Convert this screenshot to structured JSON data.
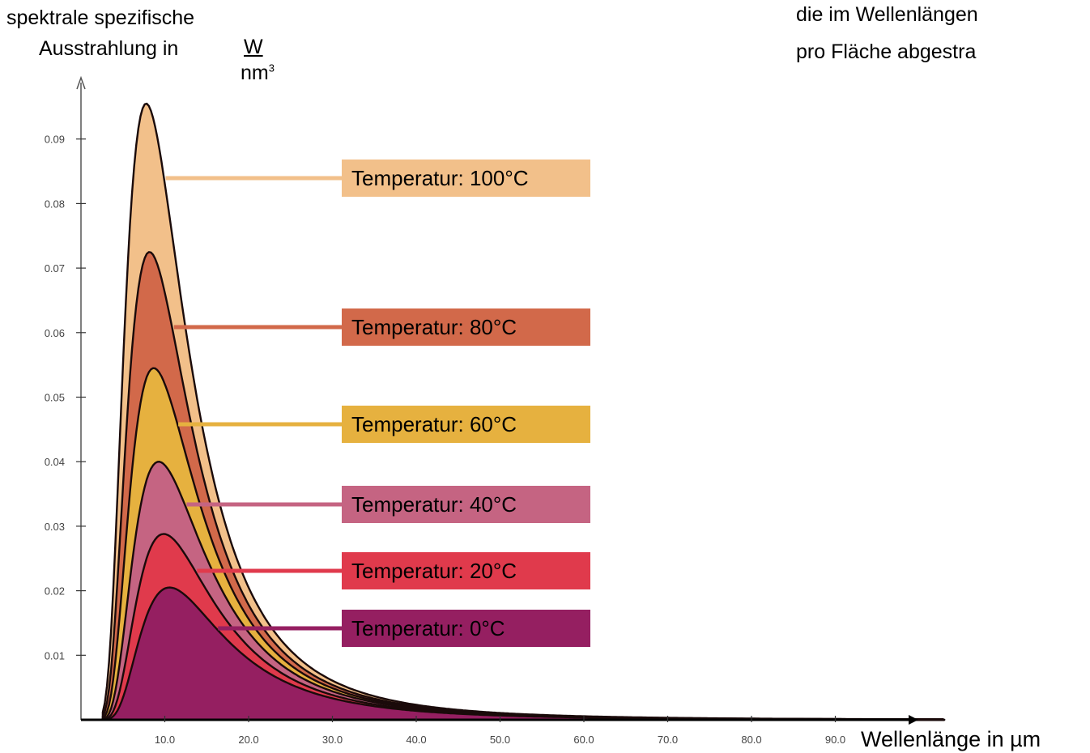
{
  "chart_data": {
    "type": "area",
    "ylabel_line1": "spektrale spezifische",
    "ylabel_line2": "Ausstrahlung in",
    "yunit_num": "W",
    "yunit_den": "nm",
    "yunit_exp": "3",
    "xlabel": "Wellenlänge in µm",
    "x_ticks": [
      "10.0",
      "20.0",
      "30.0",
      "40.0",
      "50.0",
      "60.0",
      "70.0",
      "80.0",
      "90.0"
    ],
    "y_ticks": [
      "0.01",
      "0.02",
      "0.03",
      "0.04",
      "0.05",
      "0.06",
      "0.07",
      "0.08",
      "0.09"
    ],
    "xlim": [
      0,
      100
    ],
    "ylim": [
      0,
      0.1
    ],
    "series": [
      {
        "name": "Temperatur: 100°C",
        "temperature_c": 100,
        "peak": [
          7.8,
          0.0955
        ],
        "color": "#f2c08a"
      },
      {
        "name": "Temperatur: 80°C",
        "temperature_c": 80,
        "peak": [
          8.2,
          0.0725
        ],
        "color": "#d2694a"
      },
      {
        "name": "Temperatur: 60°C",
        "temperature_c": 60,
        "peak": [
          8.7,
          0.0545
        ],
        "color": "#e6b13f"
      },
      {
        "name": "Temperatur: 40°C",
        "temperature_c": 40,
        "peak": [
          9.3,
          0.04
        ],
        "color": "#c56482"
      },
      {
        "name": "Temperatur: 20°C",
        "temperature_c": 20,
        "peak": [
          9.9,
          0.0288
        ],
        "color": "#e03a4c"
      },
      {
        "name": "Temperatur: 0°C",
        "temperature_c": 0,
        "peak": [
          10.6,
          0.0205
        ],
        "color": "#951f61"
      }
    ]
  },
  "corner_text": [
    "die im Wellenlängen",
    "pro Fläche abgestra"
  ]
}
